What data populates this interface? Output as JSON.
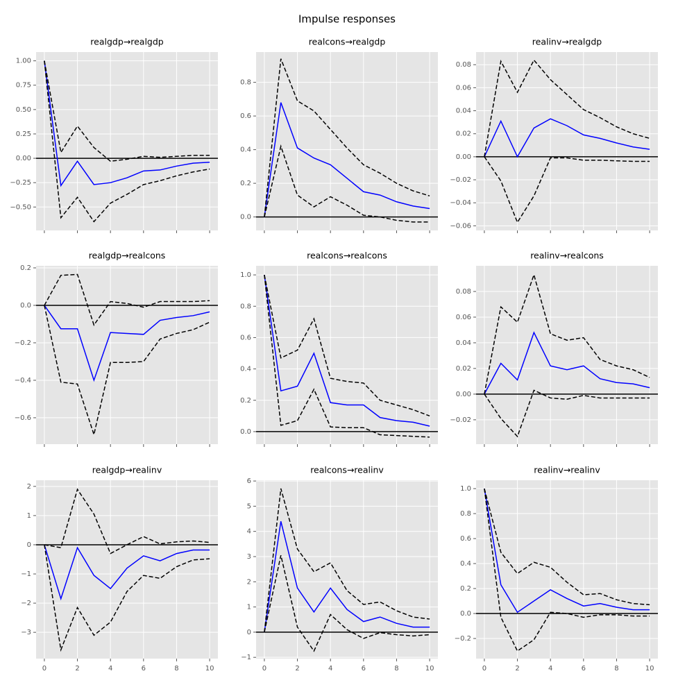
{
  "title": "Impulse responses",
  "chart_data": [
    {
      "type": "line",
      "title": "realgdp→realgdp",
      "x": [
        0,
        1,
        2,
        3,
        4,
        5,
        6,
        7,
        8,
        9,
        10
      ],
      "xlim": [
        -0.5,
        10.5
      ],
      "xticks": [
        0,
        2,
        4,
        6,
        8,
        10
      ],
      "show_xticklabels": false,
      "ylim": [
        -0.74,
        1.09
      ],
      "yticks": [
        {
          "value": -0.5,
          "label": "−0.50"
        },
        {
          "value": -0.25,
          "label": "−0.25"
        },
        {
          "value": 0,
          "label": "0.00"
        },
        {
          "value": 0.25,
          "label": "0.25"
        },
        {
          "value": 0.5,
          "label": "0.50"
        },
        {
          "value": 0.75,
          "label": "0.75"
        },
        {
          "value": 1,
          "label": "1.00"
        }
      ],
      "grid": true,
      "hline": 0,
      "series": [
        {
          "color": "#0000ff",
          "style": "solid",
          "values": [
            1.0,
            -0.28,
            -0.03,
            -0.27,
            -0.25,
            -0.2,
            -0.13,
            -0.12,
            -0.08,
            -0.05,
            -0.04
          ]
        },
        {
          "color": "#000000",
          "style": "dashed",
          "values": [
            1.0,
            0.06,
            0.33,
            0.11,
            -0.03,
            -0.01,
            0.02,
            0.01,
            0.02,
            0.03,
            0.03
          ]
        },
        {
          "color": "#000000",
          "style": "dashed",
          "values": [
            1.0,
            -0.61,
            -0.4,
            -0.65,
            -0.46,
            -0.37,
            -0.27,
            -0.23,
            -0.18,
            -0.14,
            -0.11
          ]
        }
      ]
    },
    {
      "type": "line",
      "title": "realcons→realgdp",
      "x": [
        0,
        1,
        2,
        3,
        4,
        5,
        6,
        7,
        8,
        9,
        10
      ],
      "xlim": [
        -0.5,
        10.5
      ],
      "xticks": [
        0,
        2,
        4,
        6,
        8,
        10
      ],
      "show_xticklabels": false,
      "ylim": [
        -0.08,
        0.98
      ],
      "yticks": [
        {
          "value": 0,
          "label": "0.0"
        },
        0.2,
        0.4,
        0.6,
        0.8
      ],
      "grid": true,
      "hline": 0,
      "series": [
        {
          "color": "#0000ff",
          "style": "solid",
          "values": [
            0,
            0.68,
            0.41,
            0.35,
            0.31,
            0.23,
            0.15,
            0.13,
            0.09,
            0.065,
            0.05
          ]
        },
        {
          "color": "#000000",
          "style": "dashed",
          "values": [
            0,
            0.94,
            0.69,
            0.63,
            0.52,
            0.41,
            0.31,
            0.26,
            0.2,
            0.155,
            0.125
          ]
        },
        {
          "color": "#000000",
          "style": "dashed",
          "values": [
            0,
            0.42,
            0.13,
            0.06,
            0.12,
            0.07,
            0.01,
            0,
            -0.02,
            -0.03,
            -0.03
          ]
        }
      ]
    },
    {
      "type": "line",
      "title": "realinv→realgdp",
      "x": [
        0,
        1,
        2,
        3,
        4,
        5,
        6,
        7,
        8,
        9,
        10
      ],
      "xlim": [
        -0.5,
        10.5
      ],
      "xticks": [
        0,
        2,
        4,
        6,
        8,
        10
      ],
      "show_xticklabels": false,
      "ylim": [
        -0.064,
        0.091
      ],
      "yticks": [
        {
          "value": -0.06,
          "label": "−0.06"
        },
        {
          "value": -0.04,
          "label": "−0.04"
        },
        {
          "value": -0.02,
          "label": "−0.02"
        },
        {
          "value": 0,
          "label": "0.00"
        },
        0.02,
        0.04,
        0.06,
        0.08
      ],
      "grid": true,
      "hline": 0,
      "series": [
        {
          "color": "#0000ff",
          "style": "solid",
          "values": [
            0,
            0.031,
            0,
            0.025,
            0.033,
            0.027,
            0.019,
            0.016,
            0.012,
            0.0085,
            0.0065
          ]
        },
        {
          "color": "#000000",
          "style": "dashed",
          "values": [
            0,
            0.083,
            0.056,
            0.084,
            0.067,
            0.054,
            0.041,
            0.034,
            0.026,
            0.02,
            0.016
          ]
        },
        {
          "color": "#000000",
          "style": "dashed",
          "values": [
            0,
            -0.021,
            -0.057,
            -0.034,
            -0.001,
            -0.001,
            -0.003,
            -0.003,
            -0.0035,
            -0.004,
            -0.004
          ]
        }
      ]
    },
    {
      "type": "line",
      "title": "realgdp→realcons",
      "x": [
        0,
        1,
        2,
        3,
        4,
        5,
        6,
        7,
        8,
        9,
        10
      ],
      "xlim": [
        -0.5,
        10.5
      ],
      "xticks": [
        0,
        2,
        4,
        6,
        8,
        10
      ],
      "show_xticklabels": false,
      "ylim": [
        -0.741,
        0.211
      ],
      "yticks": [
        {
          "value": -0.6,
          "label": "−0.6"
        },
        {
          "value": -0.4,
          "label": "−0.4"
        },
        {
          "value": -0.2,
          "label": "−0.2"
        },
        {
          "value": 0,
          "label": "0.0"
        },
        0.2
      ],
      "grid": true,
      "hline": 0,
      "series": [
        {
          "color": "#0000ff",
          "style": "solid",
          "values": [
            0,
            -0.125,
            -0.125,
            -0.4,
            -0.145,
            -0.15,
            -0.155,
            -0.08,
            -0.065,
            -0.055,
            -0.035
          ]
        },
        {
          "color": "#000000",
          "style": "dashed",
          "values": [
            0,
            0.16,
            0.165,
            -0.105,
            0.02,
            0.01,
            -0.01,
            0.02,
            0.02,
            0.02,
            0.025
          ]
        },
        {
          "color": "#000000",
          "style": "dashed",
          "values": [
            0,
            -0.41,
            -0.42,
            -0.69,
            -0.305,
            -0.305,
            -0.3,
            -0.18,
            -0.15,
            -0.13,
            -0.09
          ]
        }
      ]
    },
    {
      "type": "line",
      "title": "realcons→realcons",
      "x": [
        0,
        1,
        2,
        3,
        4,
        5,
        6,
        7,
        8,
        9,
        10
      ],
      "xlim": [
        -0.5,
        10.5
      ],
      "xticks": [
        0,
        2,
        4,
        6,
        8,
        10
      ],
      "show_xticklabels": false,
      "ylim": [
        -0.08,
        1.058
      ],
      "yticks": [
        {
          "value": 0,
          "label": "0.0"
        },
        0.2,
        0.4,
        0.6,
        0.8,
        {
          "value": 1,
          "label": "1.0"
        }
      ],
      "grid": true,
      "hline": 0,
      "series": [
        {
          "color": "#0000ff",
          "style": "solid",
          "values": [
            1.0,
            0.26,
            0.29,
            0.5,
            0.185,
            0.17,
            0.17,
            0.09,
            0.07,
            0.06,
            0.035
          ]
        },
        {
          "color": "#000000",
          "style": "dashed",
          "values": [
            1.0,
            0.47,
            0.52,
            0.72,
            0.34,
            0.32,
            0.31,
            0.2,
            0.17,
            0.14,
            0.1
          ]
        },
        {
          "color": "#000000",
          "style": "dashed",
          "values": [
            1.0,
            0.04,
            0.07,
            0.27,
            0.03,
            0.025,
            0.025,
            -0.02,
            -0.025,
            -0.03,
            -0.035
          ]
        }
      ]
    },
    {
      "type": "line",
      "title": "realinv→realcons",
      "x": [
        0,
        1,
        2,
        3,
        4,
        5,
        6,
        7,
        8,
        9,
        10
      ],
      "xlim": [
        -0.5,
        10.5
      ],
      "xticks": [
        0,
        2,
        4,
        6,
        8,
        10
      ],
      "show_xticklabels": false,
      "ylim": [
        -0.039,
        0.1
      ],
      "yticks": [
        {
          "value": -0.02,
          "label": "−0.02"
        },
        {
          "value": 0,
          "label": "0.00"
        },
        0.02,
        0.04,
        0.06,
        0.08
      ],
      "grid": true,
      "hline": 0,
      "series": [
        {
          "color": "#0000ff",
          "style": "solid",
          "values": [
            0,
            0.024,
            0.011,
            0.048,
            0.022,
            0.019,
            0.022,
            0.012,
            0.009,
            0.008,
            0.005
          ]
        },
        {
          "color": "#000000",
          "style": "dashed",
          "values": [
            0,
            0.068,
            0.056,
            0.093,
            0.047,
            0.042,
            0.044,
            0.027,
            0.022,
            0.019,
            0.013
          ]
        },
        {
          "color": "#000000",
          "style": "dashed",
          "values": [
            0,
            -0.019,
            -0.033,
            0.003,
            -0.003,
            -0.004,
            -0.001,
            -0.003,
            -0.003,
            -0.003,
            -0.003
          ]
        }
      ]
    },
    {
      "type": "line",
      "title": "realgdp→realinv",
      "x": [
        0,
        1,
        2,
        3,
        4,
        5,
        6,
        7,
        8,
        9,
        10
      ],
      "xlim": [
        -0.5,
        10.5
      ],
      "xticks": [
        0,
        2,
        4,
        6,
        8,
        10
      ],
      "show_xticklabels": true,
      "ylim": [
        -3.9,
        2.21
      ],
      "yticks": [
        {
          "value": -3,
          "label": "−3"
        },
        {
          "value": -2,
          "label": "−2"
        },
        {
          "value": -1,
          "label": "−1"
        },
        0,
        1,
        2
      ],
      "grid": true,
      "hline": 0,
      "series": [
        {
          "color": "#0000ff",
          "style": "solid",
          "values": [
            0,
            -1.85,
            -0.1,
            -1.05,
            -1.5,
            -0.8,
            -0.38,
            -0.55,
            -0.3,
            -0.18,
            -0.18
          ]
        },
        {
          "color": "#000000",
          "style": "dashed",
          "values": [
            0,
            -0.1,
            1.9,
            1.05,
            -0.3,
            0,
            0.28,
            0.03,
            0.1,
            0.13,
            0.08
          ]
        },
        {
          "color": "#000000",
          "style": "dashed",
          "values": [
            0,
            -3.6,
            -2.15,
            -3.1,
            -2.65,
            -1.6,
            -1.05,
            -1.15,
            -0.75,
            -0.52,
            -0.48
          ]
        }
      ]
    },
    {
      "type": "line",
      "title": "realcons→realinv",
      "x": [
        0,
        1,
        2,
        3,
        4,
        5,
        6,
        7,
        8,
        9,
        10
      ],
      "xlim": [
        -0.5,
        10.5
      ],
      "xticks": [
        0,
        2,
        4,
        6,
        8,
        10
      ],
      "show_xticklabels": true,
      "ylim": [
        -1.05,
        6.03
      ],
      "yticks": [
        {
          "value": -1,
          "label": "−1"
        },
        0,
        1,
        2,
        3,
        4,
        5,
        6
      ],
      "grid": true,
      "hline": 0,
      "series": [
        {
          "color": "#0000ff",
          "style": "solid",
          "values": [
            0,
            4.4,
            1.75,
            0.8,
            1.75,
            0.9,
            0.42,
            0.6,
            0.35,
            0.2,
            0.2
          ]
        },
        {
          "color": "#000000",
          "style": "dashed",
          "values": [
            0,
            5.7,
            3.3,
            2.4,
            2.75,
            1.65,
            1.1,
            1.2,
            0.85,
            0.6,
            0.52
          ]
        },
        {
          "color": "#000000",
          "style": "dashed",
          "values": [
            0,
            3.05,
            0.2,
            -0.75,
            0.7,
            0.1,
            -0.25,
            -0.02,
            -0.1,
            -0.15,
            -0.1
          ]
        }
      ]
    },
    {
      "type": "line",
      "title": "realinv→realinv",
      "x": [
        0,
        1,
        2,
        3,
        4,
        5,
        6,
        7,
        8,
        9,
        10
      ],
      "xlim": [
        -0.5,
        10.5
      ],
      "xticks": [
        0,
        2,
        4,
        6,
        8,
        10
      ],
      "show_xticklabels": true,
      "ylim": [
        -0.361,
        1.067
      ],
      "yticks": [
        {
          "value": -0.2,
          "label": "−0.2"
        },
        {
          "value": 0,
          "label": "0.0"
        },
        0.2,
        0.4,
        0.6,
        0.8,
        {
          "value": 1,
          "label": "1.0"
        }
      ],
      "grid": true,
      "hline": 0,
      "series": [
        {
          "color": "#0000ff",
          "style": "solid",
          "values": [
            1.0,
            0.23,
            0.01,
            0.1,
            0.19,
            0.12,
            0.06,
            0.08,
            0.05,
            0.03,
            0.03
          ]
        },
        {
          "color": "#000000",
          "style": "dashed",
          "values": [
            1.0,
            0.49,
            0.32,
            0.41,
            0.37,
            0.25,
            0.15,
            0.16,
            0.11,
            0.08,
            0.07
          ]
        },
        {
          "color": "#000000",
          "style": "dashed",
          "values": [
            1.0,
            -0.03,
            -0.3,
            -0.21,
            0.01,
            0,
            -0.03,
            -0.01,
            -0.01,
            -0.02,
            -0.02
          ]
        }
      ]
    }
  ]
}
